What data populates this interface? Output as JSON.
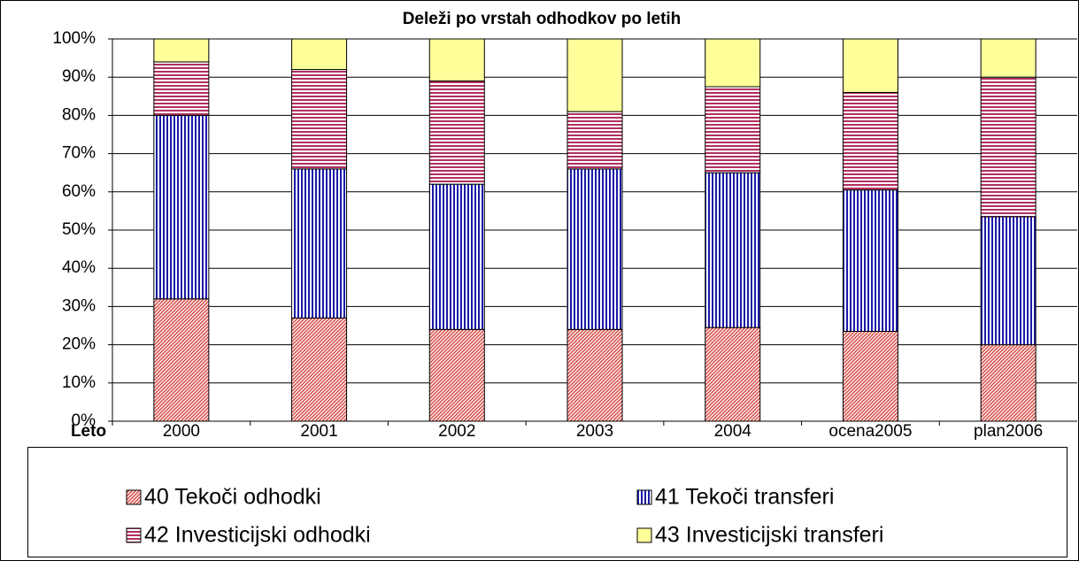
{
  "chart_data": {
    "type": "stacked_bar",
    "title": "Deleži po vrstah odhodkov po letih",
    "x_label": "Leto",
    "categories": [
      "2000",
      "2001",
      "2002",
      "2003",
      "2004",
      "ocena2005",
      "plan2006"
    ],
    "series": [
      {
        "name": "40 Tekoči odhodki",
        "color": "#d9534f",
        "pattern": "diagonal",
        "values": [
          32,
          27,
          24,
          24,
          24.5,
          23.5,
          20
        ]
      },
      {
        "name": "41 Tekoči transferi",
        "color": "#1a1aa8",
        "pattern": "vertical",
        "values": [
          48,
          39,
          38,
          42,
          40.5,
          37,
          33.5
        ]
      },
      {
        "name": "42 Investicijski odhodki",
        "color": "#b03060",
        "pattern": "horizontal",
        "values": [
          14,
          26,
          27,
          15,
          22.5,
          25.5,
          36.5
        ]
      },
      {
        "name": "43 Investicijski transferi",
        "color": "#ffff99",
        "pattern": "solid",
        "values": [
          6,
          8,
          11,
          19,
          12.5,
          14,
          10
        ]
      }
    ],
    "ylim": [
      0,
      100
    ],
    "yticks": [
      {
        "value": 0,
        "label": "0%"
      },
      {
        "value": 10,
        "label": "10%"
      },
      {
        "value": 20,
        "label": "20%"
      },
      {
        "value": 30,
        "label": "30%"
      },
      {
        "value": 40,
        "label": "40%"
      },
      {
        "value": 50,
        "label": "50%"
      },
      {
        "value": 60,
        "label": "60%"
      },
      {
        "value": 70,
        "label": "70%"
      },
      {
        "value": 80,
        "label": "80%"
      },
      {
        "value": 90,
        "label": "90%"
      },
      {
        "value": 100,
        "label": "100%"
      }
    ],
    "grid": true,
    "legend": "bottom"
  }
}
